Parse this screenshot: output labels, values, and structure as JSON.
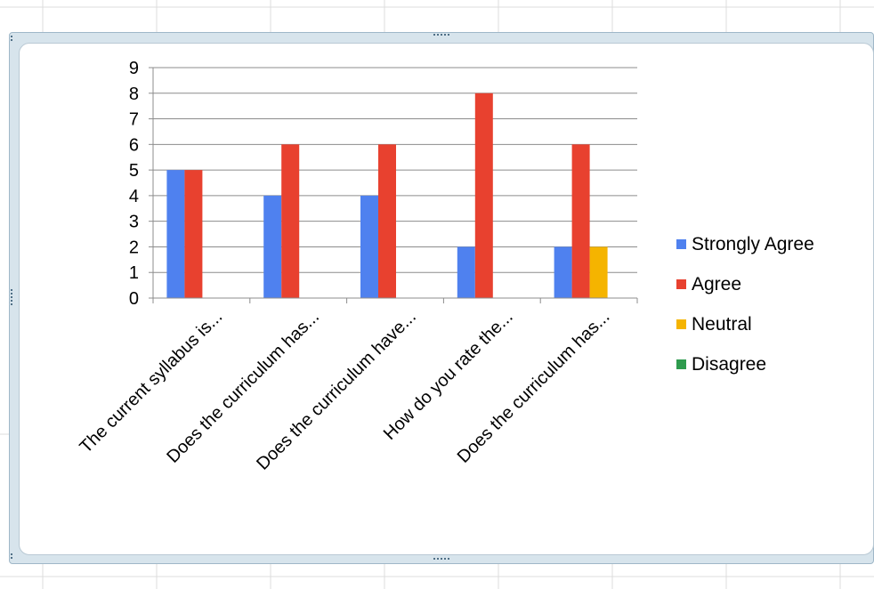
{
  "chart_data": {
    "type": "bar",
    "title": "",
    "xlabel": "",
    "ylabel": "",
    "ylim": [
      0,
      9
    ],
    "yticks": [
      0,
      1,
      2,
      3,
      4,
      5,
      6,
      7,
      8,
      9
    ],
    "grid": true,
    "legend_position": "right",
    "categories": [
      "The current syllabus is...",
      "Does the curriculum has...",
      "Does the curriculum have...",
      "How do you rate the...",
      "Does the curriculum has..."
    ],
    "series": [
      {
        "name": "Strongly Agree",
        "color": "#4f81ef",
        "values": [
          5,
          4,
          4,
          2,
          2
        ]
      },
      {
        "name": "Agree",
        "color": "#e8412f",
        "values": [
          5,
          6,
          6,
          8,
          6
        ]
      },
      {
        "name": "Neutral",
        "color": "#f5b400",
        "values": [
          0,
          0,
          0,
          0,
          2
        ]
      },
      {
        "name": "Disagree",
        "color": "#2e9b4e",
        "values": [
          0,
          0,
          0,
          0,
          0
        ]
      }
    ]
  }
}
